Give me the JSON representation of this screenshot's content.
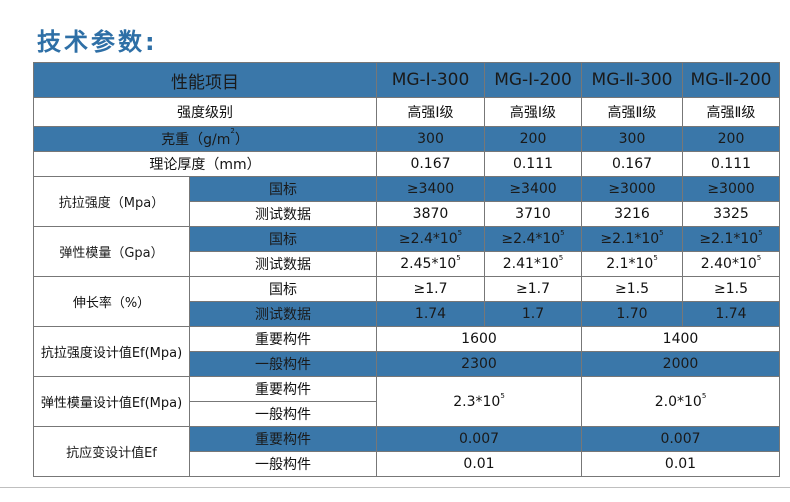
{
  "title": "技术参数:",
  "header": {
    "col0": "性能项目",
    "cols": [
      "MG-Ⅰ-300",
      "MG-Ⅰ-200",
      "MG-Ⅱ-300",
      "MG-Ⅱ-200"
    ]
  },
  "rows": {
    "grade": {
      "label": "强度级别",
      "values": [
        "高强Ⅰ级",
        "高强Ⅰ级",
        "高强Ⅱ级",
        "高强Ⅱ级"
      ]
    },
    "weight": {
      "label_pre": "克重（g/m",
      "label_sup": "2",
      "label_post": "）",
      "values": [
        "300",
        "200",
        "300",
        "200"
      ]
    },
    "thickness": {
      "label": "理论厚度（mm）",
      "values": [
        "0.167",
        "0.111",
        "0.167",
        "0.111"
      ]
    },
    "tensile": {
      "label": "抗拉强度（Mpa）",
      "std_label": "国标",
      "std": [
        "≥3400",
        "≥3400",
        "≥3000",
        "≥3000"
      ],
      "test_label": "测试数据",
      "test": [
        "3870",
        "3710",
        "3216",
        "3325"
      ]
    },
    "modulus": {
      "label": "弹性模量（Gpa）",
      "std_label": "国标",
      "std": [
        "≥2.4*10",
        "≥2.4*10",
        "≥2.1*10",
        "≥2.1*10"
      ],
      "test_label": "测试数据",
      "test": [
        "2.45*10",
        "2.41*10",
        "2.1*10",
        "2.40*10"
      ],
      "exp": "5"
    },
    "elongation": {
      "label": "伸长率（%）",
      "std_label": "国标",
      "std": [
        "≥1.7",
        "≥1.7",
        "≥1.5",
        "≥1.5"
      ],
      "test_label": "测试数据",
      "test": [
        "1.74",
        "1.7",
        "1.70",
        "1.74"
      ]
    },
    "tensile_design": {
      "label": "抗拉强度设计值Ef(Mpa)",
      "imp_label": "重要构件",
      "imp": [
        "1600",
        "1400"
      ],
      "gen_label": "一般构件",
      "gen": [
        "2300",
        "2000"
      ]
    },
    "modulus_design": {
      "label": "弹性模量设计值Ef(Mpa)",
      "imp_label": "重要构件",
      "gen_label": "一般构件",
      "values": [
        "2.3*10",
        "2.0*10"
      ],
      "exp": "5"
    },
    "strain_design": {
      "label": "抗应变设计值Ef",
      "imp_label": "重要构件",
      "imp": [
        "0.007",
        "0.007"
      ],
      "gen_label": "一般构件",
      "gen": [
        "0.01",
        "0.01"
      ]
    }
  },
  "colors": {
    "header_blue": "#3a77a9",
    "title_blue": "#2e6fa6"
  }
}
